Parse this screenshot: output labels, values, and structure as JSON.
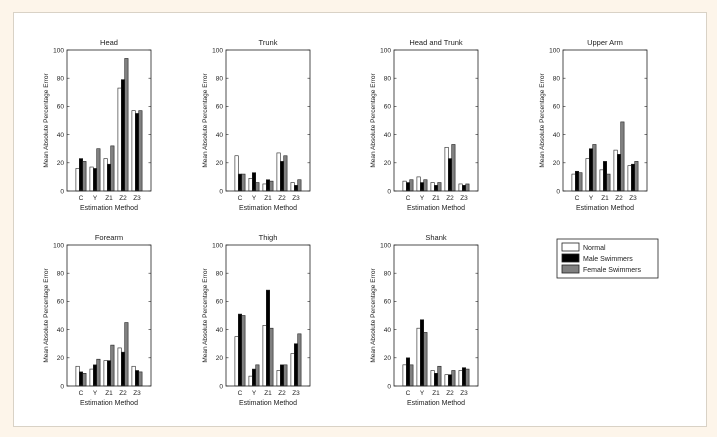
{
  "colors": {
    "normal": "#ffffff",
    "male": "#000000",
    "female": "#808080",
    "axis": "#222222",
    "page_background": "#fdf5ea"
  },
  "chart_data": [
    {
      "type": "bar",
      "title": "Head",
      "xlabel": "Estimation Method",
      "ylabel": "Mean Absolute Percentage Error",
      "ylim": [
        0,
        100
      ],
      "yticks": [
        0,
        20,
        40,
        60,
        80,
        100
      ],
      "categories": [
        "C",
        "Y",
        "Z1",
        "Z2",
        "Z3"
      ],
      "grid": false,
      "series": [
        {
          "name": "Normal",
          "values": [
            16,
            17,
            23,
            73,
            57
          ]
        },
        {
          "name": "Male Swimmers",
          "values": [
            23,
            16,
            19,
            79,
            55
          ]
        },
        {
          "name": "Female Swimmers",
          "values": [
            21,
            30,
            32,
            94,
            57
          ]
        }
      ]
    },
    {
      "type": "bar",
      "title": "Trunk",
      "xlabel": "Estimation Method",
      "ylabel": "Mean Absolute Percentage Error",
      "ylim": [
        0,
        100
      ],
      "yticks": [
        0,
        20,
        40,
        60,
        80,
        100
      ],
      "categories": [
        "C",
        "Y",
        "Z1",
        "Z2",
        "Z3"
      ],
      "grid": false,
      "series": [
        {
          "name": "Normal",
          "values": [
            25,
            9,
            5,
            27,
            6
          ]
        },
        {
          "name": "Male Swimmers",
          "values": [
            12,
            13,
            8,
            21,
            4
          ]
        },
        {
          "name": "Female Swimmers",
          "values": [
            12,
            6,
            7,
            25,
            8
          ]
        }
      ]
    },
    {
      "type": "bar",
      "title": "Head and Trunk",
      "xlabel": "Estimation Method",
      "ylabel": "Mean Absolute Percentage Error",
      "ylim": [
        0,
        100
      ],
      "yticks": [
        0,
        20,
        40,
        60,
        80,
        100
      ],
      "categories": [
        "C",
        "Y",
        "Z1",
        "Z2",
        "Z3"
      ],
      "grid": false,
      "series": [
        {
          "name": "Normal",
          "values": [
            7,
            10,
            6,
            31,
            5
          ]
        },
        {
          "name": "Male Swimmers",
          "values": [
            6,
            6,
            4,
            23,
            4
          ]
        },
        {
          "name": "Female Swimmers",
          "values": [
            8,
            8,
            6,
            33,
            5
          ]
        }
      ]
    },
    {
      "type": "bar",
      "title": "Upper Arm",
      "xlabel": "Estimation Method",
      "ylabel": "Mean Absolute Percentage Error",
      "ylim": [
        0,
        100
      ],
      "yticks": [
        0,
        20,
        40,
        60,
        80,
        100
      ],
      "categories": [
        "C",
        "Y",
        "Z1",
        "Z2",
        "Z3"
      ],
      "grid": false,
      "series": [
        {
          "name": "Normal",
          "values": [
            12,
            23,
            15,
            29,
            18
          ]
        },
        {
          "name": "Male Swimmers",
          "values": [
            14,
            30,
            21,
            26,
            19
          ]
        },
        {
          "name": "Female Swimmers",
          "values": [
            13,
            33,
            12,
            49,
            21
          ]
        }
      ]
    },
    {
      "type": "bar",
      "title": "Forearm",
      "xlabel": "Estimation Method",
      "ylabel": "Mean Absolute Percentage Error",
      "ylim": [
        0,
        100
      ],
      "yticks": [
        0,
        20,
        40,
        60,
        80,
        100
      ],
      "categories": [
        "C",
        "Y",
        "Z1",
        "Z2",
        "Z3"
      ],
      "grid": false,
      "series": [
        {
          "name": "Normal",
          "values": [
            14,
            12,
            18,
            27,
            14
          ]
        },
        {
          "name": "Male Swimmers",
          "values": [
            10,
            15,
            18,
            24,
            11
          ]
        },
        {
          "name": "Female Swimmers",
          "values": [
            9,
            19,
            29,
            45,
            10
          ]
        }
      ]
    },
    {
      "type": "bar",
      "title": "Thigh",
      "xlabel": "Estimation Method",
      "ylabel": "Mean Absolute Percentage Error",
      "ylim": [
        0,
        100
      ],
      "yticks": [
        0,
        20,
        40,
        60,
        80,
        100
      ],
      "categories": [
        "C",
        "Y",
        "Z1",
        "Z2",
        "Z3"
      ],
      "grid": false,
      "series": [
        {
          "name": "Normal",
          "values": [
            35,
            7,
            43,
            11,
            23
          ]
        },
        {
          "name": "Male Swimmers",
          "values": [
            51,
            12,
            68,
            15,
            30
          ]
        },
        {
          "name": "Female Swimmers",
          "values": [
            50,
            15,
            41,
            15,
            37
          ]
        }
      ]
    },
    {
      "type": "bar",
      "title": "Shank",
      "xlabel": "Estimation Method",
      "ylabel": "Mean Absolute Percentage Error",
      "ylim": [
        0,
        100
      ],
      "yticks": [
        0,
        20,
        40,
        60,
        80,
        100
      ],
      "categories": [
        "C",
        "Y",
        "Z1",
        "Z2",
        "Z3"
      ],
      "grid": false,
      "series": [
        {
          "name": "Normal",
          "values": [
            15,
            41,
            11,
            8,
            11
          ]
        },
        {
          "name": "Male Swimmers",
          "values": [
            20,
            47,
            9,
            8,
            13
          ]
        },
        {
          "name": "Female Swimmers",
          "values": [
            15,
            38,
            14,
            11,
            12
          ]
        }
      ]
    }
  ],
  "legend": {
    "position": "right, bottom row",
    "entries": [
      "Normal",
      "Male Swimmers",
      "Female Swimmers"
    ]
  }
}
